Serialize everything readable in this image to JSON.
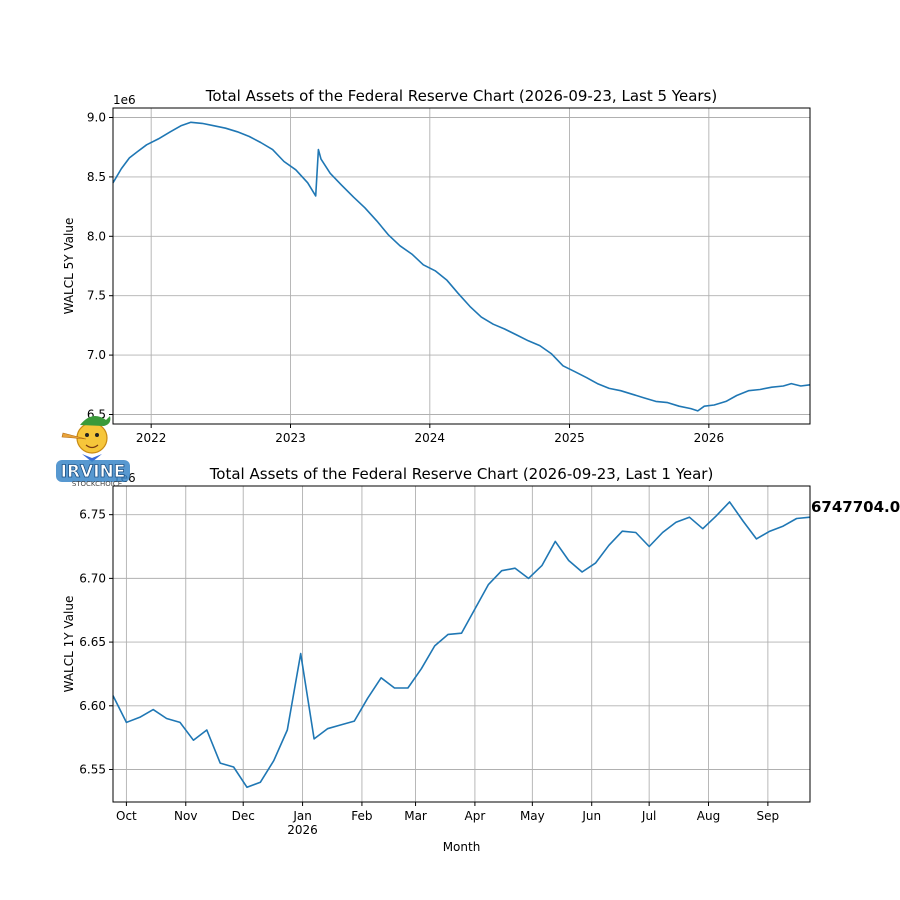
{
  "chart_data": [
    {
      "type": "line",
      "title": "Total Assets of the Federal Reserve Chart (2026-09-23, Last 5 Years)",
      "xlabel": "",
      "ylabel": "WALCL 5Y Value",
      "offset_label": "1e6",
      "ylim": [
        6.42,
        9.08
      ],
      "yticks": [
        6.5,
        7.0,
        7.5,
        8.0,
        8.5,
        9.0
      ],
      "ytick_labels": [
        "6.5",
        "7.0",
        "7.5",
        "8.0",
        "8.5",
        "9.0"
      ],
      "xlim": [
        "2021-09-23",
        "2026-09-23"
      ],
      "xticks": [
        "2022-01-01",
        "2023-01-01",
        "2024-01-01",
        "2025-01-01",
        "2026-01-01"
      ],
      "xtick_labels": [
        "2022",
        "2023",
        "2024",
        "2025",
        "2026"
      ],
      "grid": true,
      "series": [
        {
          "x": [
            "2021-09-23",
            "2021-10-15",
            "2021-11-05",
            "2021-11-25",
            "2021-12-20",
            "2022-01-20",
            "2022-02-20",
            "2022-03-20",
            "2022-04-15",
            "2022-05-15",
            "2022-06-15",
            "2022-07-15",
            "2022-08-15",
            "2022-09-15",
            "2022-10-15",
            "2022-11-15",
            "2022-12-15",
            "2023-01-15",
            "2023-02-15",
            "2023-03-08",
            "2023-03-15",
            "2023-03-22",
            "2023-04-15",
            "2023-05-15",
            "2023-06-15",
            "2023-07-15",
            "2023-08-15",
            "2023-09-15",
            "2023-10-15",
            "2023-11-15",
            "2023-12-15",
            "2024-01-15",
            "2024-02-15",
            "2024-03-15",
            "2024-04-15",
            "2024-05-15",
            "2024-06-15",
            "2024-07-15",
            "2024-08-15",
            "2024-09-15",
            "2024-10-15",
            "2024-11-15",
            "2024-12-15",
            "2025-01-15",
            "2025-02-15",
            "2025-03-15",
            "2025-04-15",
            "2025-05-15",
            "2025-06-15",
            "2025-07-15",
            "2025-08-15",
            "2025-09-15",
            "2025-10-15",
            "2025-11-15",
            "2025-12-03",
            "2025-12-20",
            "2026-01-15",
            "2026-02-15",
            "2026-03-15",
            "2026-04-15",
            "2026-05-15",
            "2026-06-15",
            "2026-07-15",
            "2026-08-05",
            "2026-08-30",
            "2026-09-23"
          ],
          "values": [
            8.45,
            8.57,
            8.66,
            8.71,
            8.77,
            8.82,
            8.88,
            8.93,
            8.96,
            8.95,
            8.93,
            8.91,
            8.88,
            8.84,
            8.79,
            8.73,
            8.63,
            8.56,
            8.45,
            8.34,
            8.73,
            8.65,
            8.53,
            8.43,
            8.33,
            8.24,
            8.13,
            8.01,
            7.92,
            7.85,
            7.76,
            7.71,
            7.63,
            7.52,
            7.41,
            7.32,
            7.26,
            7.22,
            7.17,
            7.12,
            7.08,
            7.01,
            6.91,
            6.86,
            6.81,
            6.76,
            6.72,
            6.7,
            6.67,
            6.64,
            6.61,
            6.6,
            6.57,
            6.55,
            6.53,
            6.57,
            6.58,
            6.61,
            6.66,
            6.7,
            6.71,
            6.73,
            6.74,
            6.76,
            6.74,
            6.75
          ]
        }
      ]
    },
    {
      "type": "line",
      "title": "Total Assets of the Federal Reserve Chart (2026-09-23, Last 1 Year)",
      "xlabel": "Month",
      "ylabel": "WALCL 1Y Value",
      "offset_label": "1e6",
      "ylim": [
        6.5245,
        6.7725
      ],
      "yticks": [
        6.55,
        6.6,
        6.65,
        6.7,
        6.75
      ],
      "ytick_labels": [
        "6.55",
        "6.60",
        "6.65",
        "6.70",
        "6.75"
      ],
      "xlim": [
        "2025-09-24",
        "2026-09-23"
      ],
      "xticks": [
        "2025-10-01",
        "2025-11-01",
        "2025-12-01",
        "2026-01-01",
        "2026-02-01",
        "2026-03-01",
        "2026-04-01",
        "2026-05-01",
        "2026-06-01",
        "2026-07-01",
        "2026-08-01",
        "2026-09-01"
      ],
      "xtick_labels": [
        "Oct",
        "Nov",
        "Dec",
        "Jan",
        "Feb",
        "Mar",
        "Apr",
        "May",
        "Jun",
        "Jul",
        "Aug",
        "Sep"
      ],
      "xtick_sublabel": "2026",
      "last_value_label": "6747704.0",
      "grid": true,
      "series": [
        {
          "x": [
            "2025-09-24",
            "2025-10-01",
            "2025-10-08",
            "2025-10-15",
            "2025-10-22",
            "2025-10-29",
            "2025-11-05",
            "2025-11-12",
            "2025-11-19",
            "2025-11-26",
            "2025-12-03",
            "2025-12-10",
            "2025-12-17",
            "2025-12-24",
            "2025-12-31",
            "2026-01-07",
            "2026-01-14",
            "2026-01-21",
            "2026-01-28",
            "2026-02-04",
            "2026-02-11",
            "2026-02-18",
            "2026-02-25",
            "2026-03-04",
            "2026-03-11",
            "2026-03-18",
            "2026-03-25",
            "2026-04-01",
            "2026-04-08",
            "2026-04-15",
            "2026-04-22",
            "2026-04-29",
            "2026-05-06",
            "2026-05-13",
            "2026-05-20",
            "2026-05-27",
            "2026-06-03",
            "2026-06-10",
            "2026-06-17",
            "2026-06-24",
            "2026-07-01",
            "2026-07-08",
            "2026-07-15",
            "2026-07-22",
            "2026-07-29",
            "2026-08-05",
            "2026-08-12",
            "2026-08-19",
            "2026-08-26",
            "2026-09-02",
            "2026-09-09",
            "2026-09-16",
            "2026-09-23"
          ],
          "values": [
            6.608,
            6.587,
            6.591,
            6.597,
            6.59,
            6.587,
            6.573,
            6.581,
            6.555,
            6.552,
            6.536,
            6.54,
            6.557,
            6.581,
            6.641,
            6.574,
            6.582,
            6.585,
            6.588,
            6.606,
            6.622,
            6.614,
            6.614,
            6.629,
            6.647,
            6.656,
            6.657,
            6.676,
            6.695,
            6.706,
            6.708,
            6.7,
            6.71,
            6.729,
            6.714,
            6.705,
            6.712,
            6.726,
            6.737,
            6.736,
            6.725,
            6.736,
            6.744,
            6.748,
            6.739,
            6.749,
            6.76,
            6.745,
            6.731,
            6.737,
            6.741,
            6.747,
            6.748
          ]
        }
      ]
    }
  ],
  "watermark": {
    "text": "IRVINE",
    "subtext": "STOCKCHOICE"
  }
}
